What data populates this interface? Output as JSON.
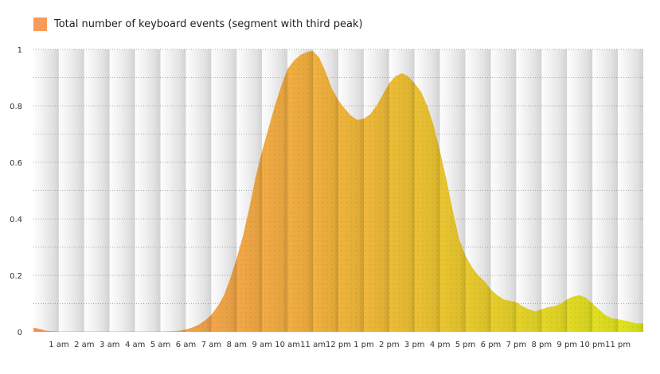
{
  "chart_data": {
    "type": "area",
    "legend": {
      "label": "Total number of keyboard events (segment with third peak)",
      "swatch_color": "#f89a5a",
      "position": "top-left"
    },
    "title": "",
    "xlabel": "",
    "ylabel": "",
    "x_tick_labels": [
      "1 am",
      "2 am",
      "3 am",
      "4 am",
      "5 am",
      "6 am",
      "7 am",
      "8 am",
      "9 am",
      "10 am",
      "11 am",
      "12 pm",
      "1 pm",
      "2 pm",
      "3 pm",
      "4 pm",
      "5 pm",
      "6 pm",
      "7 pm",
      "8 pm",
      "9 pm",
      "10 pm",
      "11 pm"
    ],
    "y_tick_labels": [
      "0",
      "0.2",
      "0.4",
      "0.6",
      "0.8",
      "1"
    ],
    "xlim": [
      0,
      24
    ],
    "ylim": [
      0,
      1
    ],
    "grid": true,
    "gradient_colors": [
      "#f8915e",
      "#f1b43c",
      "#dfe81c"
    ],
    "series": [
      {
        "name": "Total number of keyboard events (segment with third peak)",
        "x": [
          0,
          0.25,
          0.5,
          0.75,
          1,
          2,
          3,
          4,
          5,
          5.5,
          5.75,
          6,
          6.25,
          6.5,
          6.75,
          7,
          7.25,
          7.5,
          7.75,
          8,
          8.25,
          8.5,
          8.75,
          9,
          9.25,
          9.5,
          9.75,
          10,
          10.25,
          10.5,
          10.75,
          11,
          11.25,
          11.5,
          11.75,
          12,
          12.25,
          12.5,
          12.75,
          13,
          13.25,
          13.5,
          13.75,
          14,
          14.25,
          14.5,
          14.75,
          15,
          15.25,
          15.5,
          15.75,
          16,
          16.25,
          16.5,
          16.75,
          17,
          17.25,
          17.5,
          17.75,
          18,
          18.25,
          18.5,
          18.75,
          19,
          19.25,
          19.5,
          19.75,
          20,
          20.25,
          20.5,
          20.75,
          21,
          21.25,
          21.5,
          21.75,
          22,
          22.25,
          22.5,
          22.75,
          23,
          23.25,
          23.5,
          23.75,
          24
        ],
        "values": [
          0.015,
          0.01,
          0.004,
          0.002,
          0.001,
          0.001,
          0.001,
          0.001,
          0.001,
          0.002,
          0.004,
          0.008,
          0.015,
          0.025,
          0.04,
          0.06,
          0.09,
          0.13,
          0.19,
          0.26,
          0.34,
          0.44,
          0.55,
          0.64,
          0.72,
          0.8,
          0.87,
          0.93,
          0.96,
          0.98,
          0.99,
          0.995,
          0.97,
          0.92,
          0.86,
          0.82,
          0.79,
          0.765,
          0.75,
          0.755,
          0.77,
          0.8,
          0.84,
          0.88,
          0.905,
          0.915,
          0.905,
          0.88,
          0.85,
          0.8,
          0.73,
          0.64,
          0.54,
          0.43,
          0.33,
          0.27,
          0.23,
          0.2,
          0.18,
          0.15,
          0.13,
          0.115,
          0.11,
          0.105,
          0.09,
          0.08,
          0.072,
          0.08,
          0.087,
          0.09,
          0.1,
          0.115,
          0.125,
          0.13,
          0.12,
          0.1,
          0.08,
          0.06,
          0.048,
          0.045,
          0.04,
          0.035,
          0.03,
          0.03
        ]
      }
    ]
  }
}
